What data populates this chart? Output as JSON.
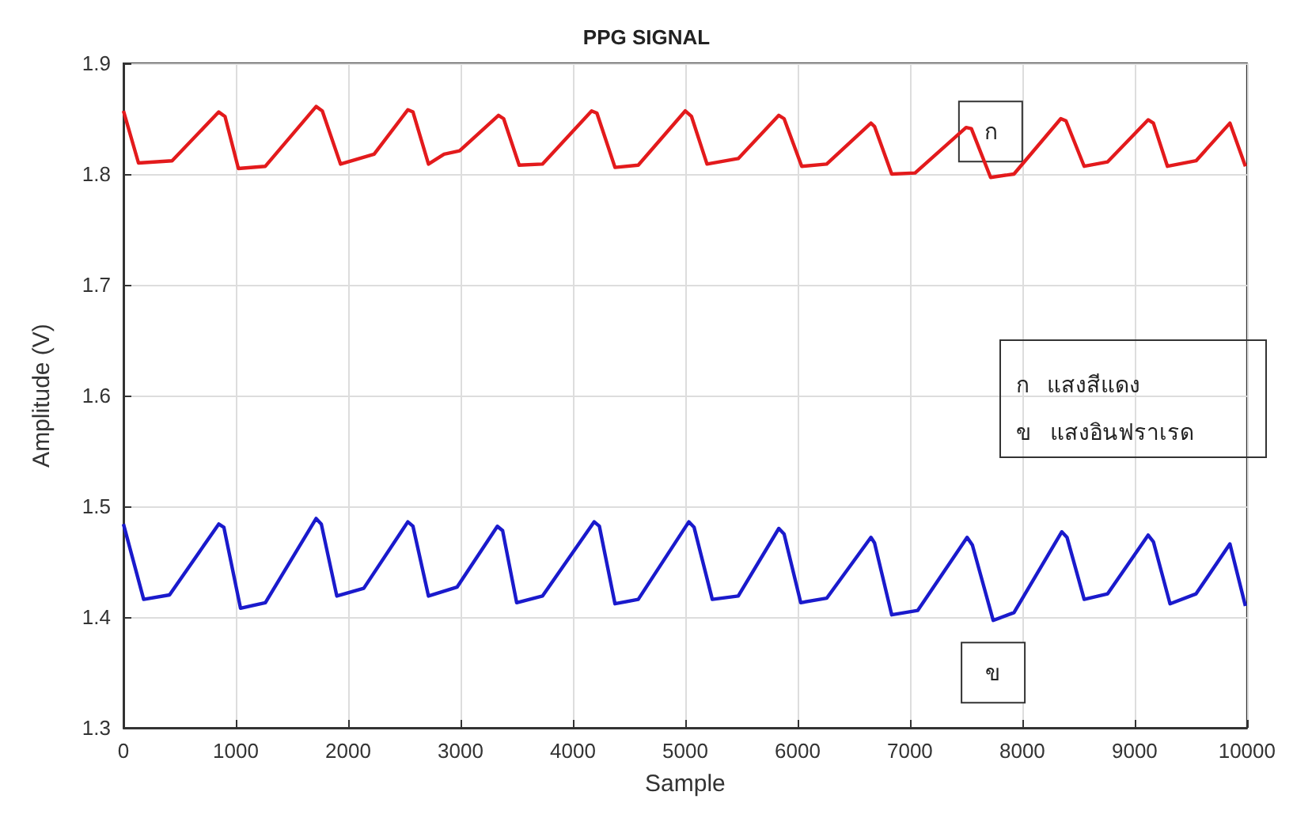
{
  "chart_data": {
    "type": "line",
    "title": "PPG SIGNAL",
    "xlabel": "Sample",
    "ylabel": "Amplitude (V)",
    "xlim": [
      0,
      10000
    ],
    "xticks": [
      0,
      1000,
      2000,
      3000,
      4000,
      5000,
      6000,
      7000,
      8000,
      9000,
      10000
    ],
    "ylim": [
      1.3,
      1.9
    ],
    "yticks": [
      1.3,
      1.4,
      1.5,
      1.6,
      1.7,
      1.8,
      1.9
    ],
    "grid": true,
    "line_style": "solid",
    "marker": "none",
    "annotations": [
      "ก   แสงสีแดง",
      "ข   แสงอินฟราเรด"
    ],
    "series": [
      {
        "name": "ก",
        "color": "#e31a1c",
        "x": [
          0,
          134,
          433,
          848,
          904,
          1023,
          1263,
          1715,
          1770,
          1932,
          2231,
          2531,
          2577,
          2715,
          2854,
          2992,
          3338,
          3384,
          3522,
          3729,
          4167,
          4214,
          4375,
          4582,
          5000,
          5056,
          5194,
          5472,
          5833,
          5880,
          6037,
          6259,
          6653,
          6685,
          6838,
          7046,
          7500,
          7547,
          7718,
          7926,
          8343,
          8389,
          8551,
          8760,
          9120,
          9167,
          9292,
          9547,
          9848,
          9986
        ],
        "values": [
          1.857,
          1.81,
          1.812,
          1.856,
          1.852,
          1.805,
          1.807,
          1.861,
          1.857,
          1.809,
          1.818,
          1.858,
          1.856,
          1.809,
          1.818,
          1.821,
          1.853,
          1.85,
          1.808,
          1.809,
          1.857,
          1.855,
          1.806,
          1.808,
          1.857,
          1.852,
          1.809,
          1.814,
          1.853,
          1.85,
          1.807,
          1.809,
          1.846,
          1.843,
          1.8,
          1.801,
          1.842,
          1.841,
          1.797,
          1.8,
          1.85,
          1.848,
          1.807,
          1.811,
          1.849,
          1.846,
          1.807,
          1.812,
          1.846,
          1.807
        ]
      },
      {
        "name": "ข",
        "color": "#1a1acc",
        "x": [
          0,
          180,
          410,
          848,
          894,
          1042,
          1263,
          1715,
          1761,
          1899,
          2139,
          2531,
          2577,
          2715,
          2969,
          3328,
          3375,
          3500,
          3729,
          4190,
          4236,
          4375,
          4582,
          5032,
          5079,
          5241,
          5472,
          5833,
          5880,
          6028,
          6259,
          6653,
          6685,
          6838,
          7070,
          7509,
          7556,
          7741,
          7926,
          8352,
          8398,
          8551,
          8760,
          9120,
          9167,
          9315,
          9547,
          9848,
          9986
        ],
        "values": [
          1.484,
          1.416,
          1.42,
          1.484,
          1.481,
          1.408,
          1.413,
          1.489,
          1.484,
          1.419,
          1.426,
          1.486,
          1.482,
          1.419,
          1.427,
          1.482,
          1.478,
          1.413,
          1.419,
          1.486,
          1.482,
          1.412,
          1.416,
          1.486,
          1.481,
          1.416,
          1.419,
          1.48,
          1.475,
          1.413,
          1.417,
          1.472,
          1.467,
          1.402,
          1.406,
          1.472,
          1.465,
          1.397,
          1.404,
          1.477,
          1.472,
          1.416,
          1.421,
          1.474,
          1.468,
          1.412,
          1.421,
          1.466,
          1.41
        ]
      }
    ]
  }
}
